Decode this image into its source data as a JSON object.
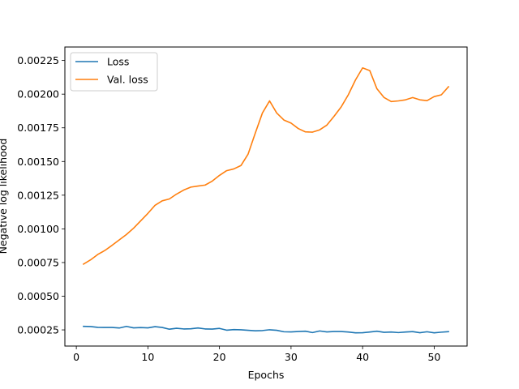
{
  "chart_data": {
    "type": "line",
    "title": "",
    "xlabel": "Epochs",
    "ylabel": "Negative log likelihood",
    "xlim": [
      -1.6,
      54.6
    ],
    "ylim": [
      0.00013,
      0.00235
    ],
    "xticks": [
      0,
      10,
      20,
      30,
      40,
      50
    ],
    "xtick_labels": [
      "0",
      "10",
      "20",
      "30",
      "40",
      "50"
    ],
    "yticks": [
      0.00025,
      0.0005,
      0.00075,
      0.001,
      0.00125,
      0.0015,
      0.00175,
      0.002,
      0.00225
    ],
    "ytick_labels": [
      "0.00025",
      "0.00050",
      "0.00075",
      "0.00100",
      "0.00125",
      "0.00150",
      "0.00175",
      "0.00200",
      "0.00225"
    ],
    "grid": false,
    "legend": "top-left",
    "x": [
      1,
      2,
      3,
      4,
      5,
      6,
      7,
      8,
      9,
      10,
      11,
      12,
      13,
      14,
      15,
      16,
      17,
      18,
      19,
      20,
      21,
      22,
      23,
      24,
      25,
      26,
      27,
      28,
      29,
      30,
      31,
      32,
      33,
      34,
      35,
      36,
      37,
      38,
      39,
      40,
      41,
      42,
      43,
      44,
      45,
      46,
      47,
      48,
      49,
      50,
      51,
      52
    ],
    "series": [
      {
        "name": "Loss",
        "color": "#1f77b4",
        "values": [
          0.000276,
          0.000275,
          0.000269,
          0.000268,
          0.000268,
          0.000264,
          0.000276,
          0.000265,
          0.000267,
          0.000265,
          0.000274,
          0.000268,
          0.000255,
          0.000262,
          0.000257,
          0.000258,
          0.000264,
          0.000257,
          0.000256,
          0.000261,
          0.000248,
          0.000252,
          0.000251,
          0.000247,
          0.000243,
          0.000245,
          0.000251,
          0.000247,
          0.000236,
          0.000235,
          0.000238,
          0.00024,
          0.00023,
          0.000242,
          0.000235,
          0.000238,
          0.000238,
          0.000234,
          0.000228,
          0.000229,
          0.000234,
          0.00024,
          0.000232,
          0.000234,
          0.00023,
          0.000234,
          0.000237,
          0.000229,
          0.000236,
          0.000228,
          0.000233,
          0.000237
        ]
      },
      {
        "name": "Val. loss",
        "color": "#ff7f0e",
        "values": [
          0.000738,
          0.00077,
          0.00081,
          0.00084,
          0.000878,
          0.000918,
          0.000958,
          0.001005,
          0.00106,
          0.001115,
          0.001175,
          0.001208,
          0.001222,
          0.001258,
          0.001288,
          0.00131,
          0.001318,
          0.001325,
          0.001355,
          0.001397,
          0.001432,
          0.001445,
          0.00147,
          0.001555,
          0.00171,
          0.00186,
          0.00195,
          0.00186,
          0.001808,
          0.001785,
          0.001745,
          0.00172,
          0.001718,
          0.001735,
          0.00177,
          0.001835,
          0.001905,
          0.001995,
          0.002105,
          0.002195,
          0.002175,
          0.00204,
          0.001975,
          0.001945,
          0.00195,
          0.001958,
          0.001975,
          0.001958,
          0.001952,
          0.001982,
          0.001995,
          0.002055
        ]
      }
    ]
  }
}
